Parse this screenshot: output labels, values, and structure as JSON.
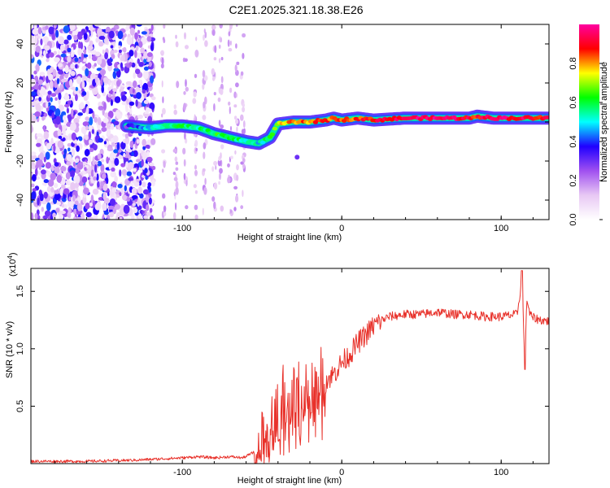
{
  "title": "C2E1.2025.321.18.38.E26",
  "chart_data": [
    {
      "type": "heatmap",
      "name": "spectrogram",
      "xlabel": "Height of straight line (km)",
      "ylabel": "Frequency (Hz)",
      "xlim": [
        -195,
        130
      ],
      "ylim": [
        -50,
        50
      ],
      "xticks": [
        -100,
        0,
        100
      ],
      "yticks": [
        -40,
        -20,
        0,
        20,
        40
      ],
      "colorbar": {
        "label": "Normalized spectral amplitude",
        "range": [
          0,
          1
        ],
        "ticks": [
          0.0,
          0.2,
          0.4,
          0.6,
          0.8
        ],
        "colors": [
          "#ffffff",
          "#e8c8f4",
          "#a050f0",
          "#2000ff",
          "#00ffff",
          "#00ff00",
          "#ffff00",
          "#ff0000",
          "#ff00a0"
        ]
      },
      "ridge": {
        "description": "dominant frequency track vs height",
        "x": [
          -135,
          -120,
          -110,
          -100,
          -90,
          -80,
          -70,
          -60,
          -52,
          -45,
          -40,
          -30,
          -20,
          -10,
          -5,
          0,
          10,
          20,
          40,
          60,
          80,
          85,
          95,
          110,
          130
        ],
        "y": [
          -2,
          -3,
          -2,
          -2,
          -3,
          -6,
          -8,
          -10,
          -11,
          -8,
          -1,
          0,
          0,
          1,
          2,
          1,
          2,
          1,
          2,
          2,
          2,
          3,
          2,
          2,
          2
        ],
        "amplitude": [
          0.3,
          0.5,
          0.55,
          0.6,
          0.55,
          0.6,
          0.6,
          0.55,
          0.5,
          0.6,
          0.75,
          0.8,
          0.82,
          0.85,
          0.8,
          0.85,
          0.85,
          0.9,
          0.95,
          0.95,
          0.9,
          0.88,
          0.95,
          0.92,
          0.9
        ]
      },
      "noise_region": {
        "x_range": [
          -195,
          -118
        ],
        "level": "high scattered noise"
      }
    },
    {
      "type": "line",
      "name": "snr",
      "xlabel": "Height of straight line (km)",
      "ylabel": "SNR (10 * v/v)",
      "yscale_label": "(x10^4)",
      "yscale_base": "(x10",
      "yscale_exp": "4",
      "yscale_close": ")",
      "xlim": [
        -195,
        130
      ],
      "ylim": [
        0,
        1.7
      ],
      "xticks": [
        -100,
        0,
        100
      ],
      "yticks": [
        0.5,
        1.0,
        1.5
      ],
      "ytick_labels": [
        "0.5",
        "1.0",
        "1.5"
      ],
      "color": "#e8312a",
      "series": [
        {
          "name": "SNR",
          "x": [
            -195,
            -160,
            -130,
            -115,
            -100,
            -90,
            -80,
            -70,
            -62,
            -55,
            -50,
            -47,
            -45,
            -42,
            -40,
            -37,
            -35,
            -30,
            -25,
            -20,
            -15,
            -10,
            -5,
            0,
            5,
            10,
            15,
            20,
            25,
            30,
            40,
            50,
            60,
            70,
            80,
            90,
            100,
            110,
            113,
            115,
            116,
            118,
            120,
            125,
            130
          ],
          "y": [
            0.02,
            0.02,
            0.03,
            0.04,
            0.05,
            0.06,
            0.05,
            0.06,
            0.05,
            0.1,
            0.15,
            0.25,
            0.35,
            0.45,
            0.5,
            0.55,
            0.5,
            0.55,
            0.6,
            0.65,
            0.68,
            0.72,
            0.78,
            0.88,
            0.95,
            1.05,
            1.12,
            1.2,
            1.25,
            1.28,
            1.3,
            1.3,
            1.32,
            1.3,
            1.3,
            1.28,
            1.28,
            1.3,
            1.6,
            0.85,
            1.45,
            1.3,
            1.27,
            1.25,
            1.24
          ]
        }
      ]
    }
  ]
}
